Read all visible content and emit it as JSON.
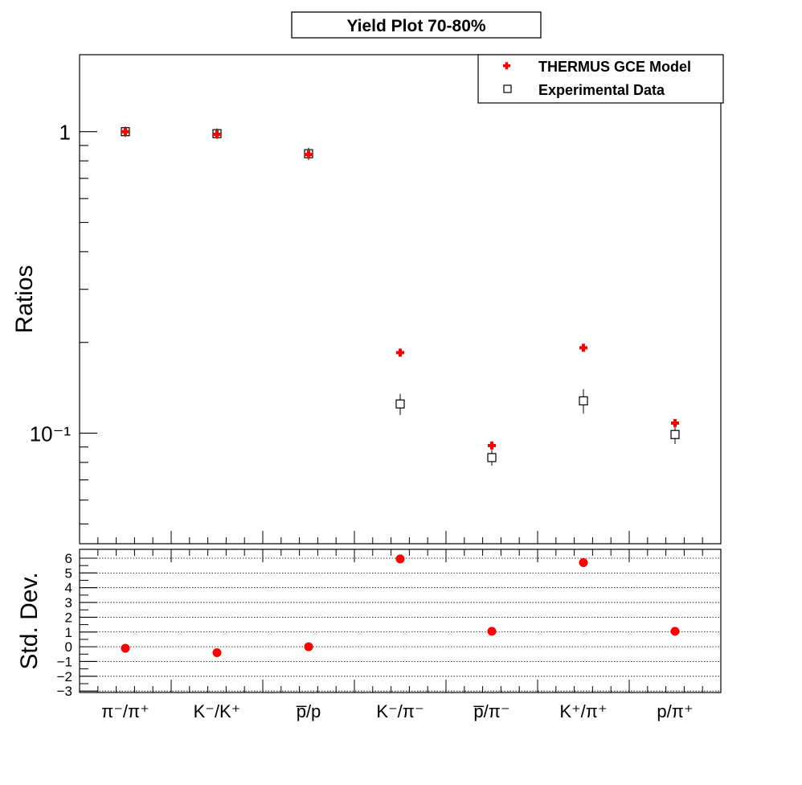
{
  "chart_data": [
    {
      "type": "scatter",
      "title": "Yield Plot 70-80%",
      "ylabel": "Ratios",
      "yscale": "log",
      "ylim": [
        0.043,
        1.8
      ],
      "ytick_labels": [
        "10⁻¹",
        "1"
      ],
      "categories": [
        "π⁻/π⁺",
        "K⁻/K⁺",
        "p̅/p",
        "K⁻/π⁻",
        "p̅/π⁻",
        "K⁺/π⁺",
        "p/π⁺"
      ],
      "legend": {
        "position": "top-right",
        "entries": [
          "THERMUS GCE Model",
          "Experimental Data"
        ]
      },
      "series": [
        {
          "name": "THERMUS GCE Model",
          "marker": "plus",
          "color": "#ff0000",
          "values": [
            1.0,
            0.98,
            0.84,
            0.185,
            0.091,
            0.192,
            0.108
          ]
        },
        {
          "name": "Experimental Data",
          "marker": "open-square",
          "color": "#000000",
          "values": [
            1.0,
            0.985,
            0.845,
            0.125,
            0.083,
            0.128,
            0.099
          ],
          "errors": [
            0.04,
            0.04,
            0.04,
            0.01,
            0.005,
            0.012,
            0.007
          ]
        }
      ]
    },
    {
      "type": "scatter",
      "ylabel": "Std. Dev.",
      "ylim": [
        -3.1,
        6.6
      ],
      "yticks": [
        -3,
        -2,
        -1,
        0,
        1,
        2,
        3,
        4,
        5,
        6
      ],
      "grid": true,
      "categories": [
        "π⁻/π⁺",
        "K⁻/K⁺",
        "p̅/p",
        "K⁻/π⁻",
        "p̅/π⁻",
        "K⁺/π⁺",
        "p/π⁺"
      ],
      "series": [
        {
          "marker": "filled-circle",
          "color": "#ff0000",
          "values": [
            -0.1,
            -0.4,
            0.0,
            5.95,
            1.05,
            5.7,
            1.05
          ]
        }
      ]
    }
  ],
  "colors": {
    "model": "#ff0000",
    "data": "#000000",
    "frame": "#000000"
  }
}
